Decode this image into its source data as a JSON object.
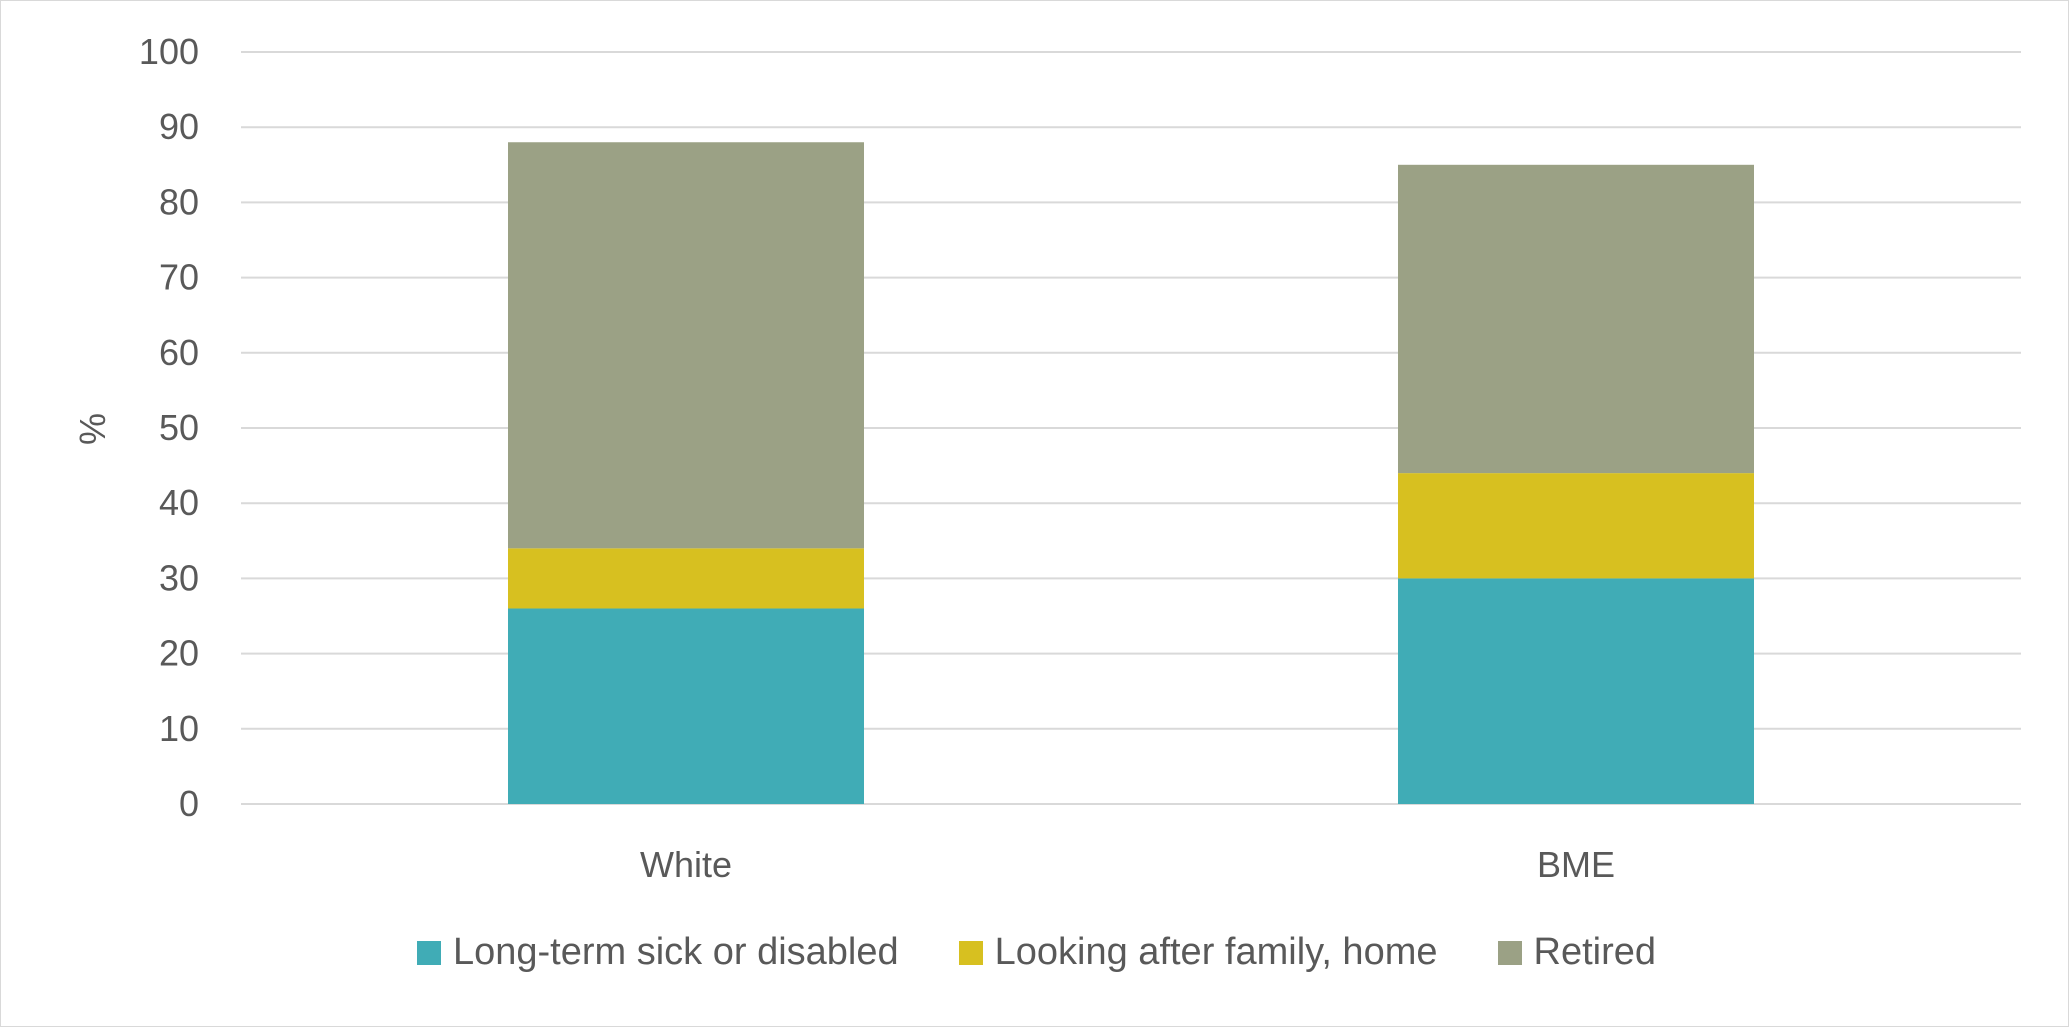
{
  "chart_data": {
    "type": "bar",
    "stacked": true,
    "categories": [
      "White",
      "BME"
    ],
    "series": [
      {
        "name": "Long-term sick or disabled",
        "values": [
          26,
          30
        ],
        "color": "#40acb6"
      },
      {
        "name": "Looking after family, home",
        "values": [
          8,
          14
        ],
        "color": "#d7c020"
      },
      {
        "name": "Retired",
        "values": [
          54,
          41
        ],
        "color": "#9ba185"
      }
    ],
    "title": "",
    "xlabel": "",
    "ylabel": "%",
    "ylim": [
      0,
      100
    ],
    "yticks": [
      "0",
      "10",
      "20",
      "30",
      "40",
      "50",
      "60",
      "70",
      "80",
      "90",
      "100"
    ],
    "grid": true,
    "legend_position": "bottom"
  }
}
